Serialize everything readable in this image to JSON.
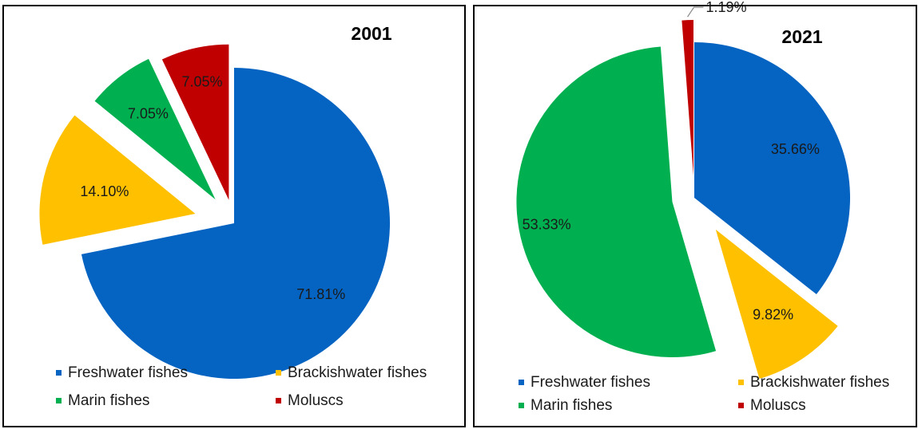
{
  "chart_data": [
    {
      "type": "pie",
      "title": "2001",
      "categories": [
        "Freshwater fishes",
        "Brackishwater fishes",
        "Marin fishes",
        "Moluscs"
      ],
      "values": [
        71.81,
        14.1,
        7.05,
        7.05
      ],
      "labels": [
        "71.81%",
        "14.10%",
        "7.05%",
        "7.05%"
      ],
      "colors": [
        "#0563C1",
        "#FFC000",
        "#00B050",
        "#C00000"
      ],
      "legend_position": "bottom"
    },
    {
      "type": "pie",
      "title": "2021",
      "categories": [
        "Freshwater fishes",
        "Brackishwater fishes",
        "Marin fishes",
        "Moluscs"
      ],
      "values": [
        35.66,
        9.82,
        53.33,
        1.19
      ],
      "labels": [
        "35.66%",
        "9.82%",
        "53.33%",
        "1.19%"
      ],
      "colors": [
        "#0563C1",
        "#FFC000",
        "#00B050",
        "#C00000"
      ],
      "legend_position": "bottom"
    }
  ]
}
